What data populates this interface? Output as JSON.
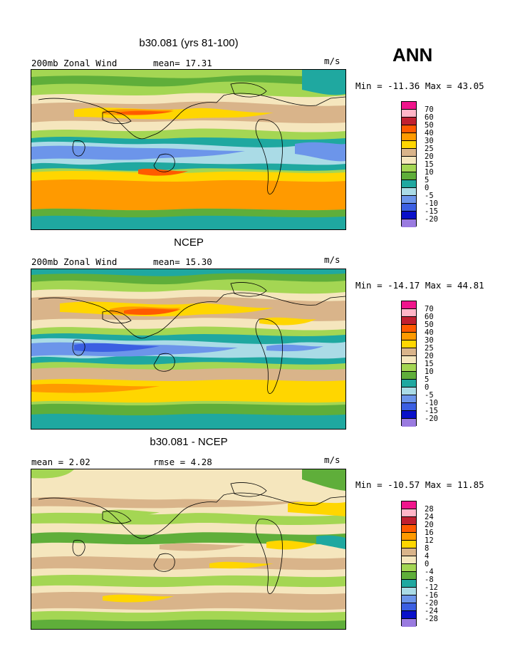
{
  "season": "ANN",
  "colors": {
    "wind": [
      "#f0158c",
      "#ffb6c8",
      "#c12030",
      "#ff5a00",
      "#ff9a00",
      "#ffd600",
      "#d9b48a",
      "#f5e6bd",
      "#a4d653",
      "#5fae3a",
      "#1fa8a0",
      "#aadbe6",
      "#6c95ea",
      "#3b5fe2",
      "#0a10c9",
      "#9a7be0"
    ],
    "diff": [
      "#f0158c",
      "#ffb6c8",
      "#c12030",
      "#ff5a00",
      "#ff9a00",
      "#ffd600",
      "#d9b48a",
      "#f5e6bd",
      "#a4d653",
      "#5fae3a",
      "#1fa8a0",
      "#aadbe6",
      "#6c95ea",
      "#3b5fe2",
      "#0a10c9",
      "#9a7be0"
    ]
  },
  "panels": [
    {
      "title": "b30.081 (yrs 81-100)",
      "left_label": "200mb Zonal Wind",
      "mean_label": "mean=  17.31",
      "units": "m/s",
      "minmax": "Min = -11.36 Max =  43.05",
      "legend": [
        "70",
        "60",
        "50",
        "40",
        "30",
        "25",
        "20",
        "15",
        "10",
        "5",
        "0",
        "-5",
        "-10",
        "-15",
        "-20"
      ]
    },
    {
      "title": "NCEP",
      "left_label": "200mb Zonal Wind",
      "mean_label": "mean=  15.30",
      "units": "m/s",
      "minmax": "Min = -14.17 Max =  44.81",
      "legend": [
        "70",
        "60",
        "50",
        "40",
        "30",
        "25",
        "20",
        "15",
        "10",
        "5",
        "0",
        "-5",
        "-10",
        "-15",
        "-20"
      ]
    },
    {
      "title": "b30.081 - NCEP",
      "left_label": "mean =   2.02",
      "mean_label": "rmse =   4.28",
      "units": "m/s",
      "minmax": "Min = -10.57 Max =  11.85",
      "legend": [
        "28",
        "24",
        "20",
        "16",
        "12",
        "8",
        "4",
        "0",
        "-4",
        "-8",
        "-12",
        "-16",
        "-20",
        "-24",
        "-28"
      ]
    }
  ]
}
